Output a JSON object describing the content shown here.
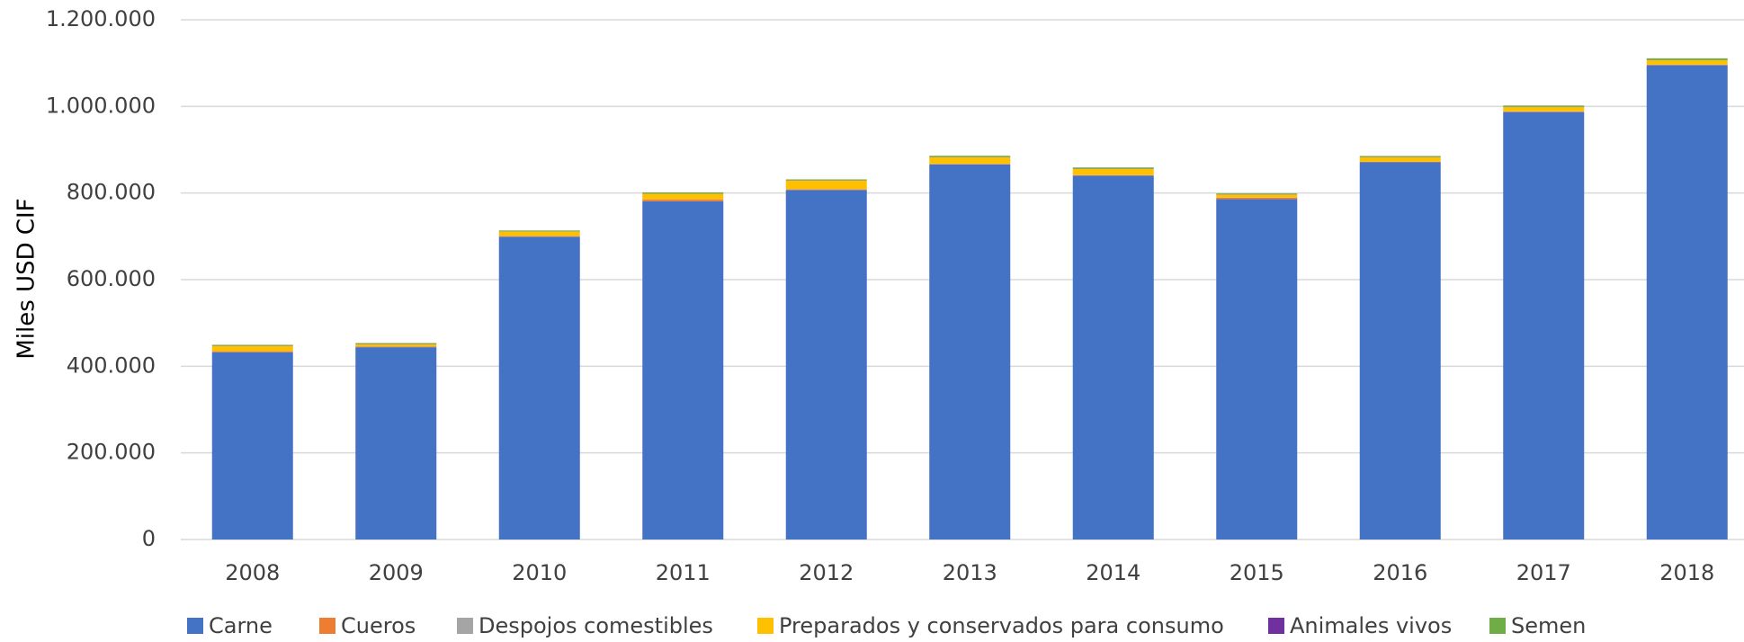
{
  "chart_data": {
    "type": "stacked-bar",
    "y_axis_label": "Miles USD CIF",
    "categories": [
      "2008",
      "2009",
      "2010",
      "2011",
      "2012",
      "2013",
      "2014",
      "2015",
      "2016",
      "2017",
      "2018"
    ],
    "series": [
      {
        "name": "Carne",
        "color": "#4472c4",
        "values": [
          432000,
          444000,
          699000,
          781000,
          807000,
          866000,
          840000,
          786000,
          871000,
          987000,
          1095000
        ]
      },
      {
        "name": "Cueros",
        "color": "#ed7d31",
        "values": [
          2000,
          1500,
          1500,
          4000,
          1500,
          1000,
          1000,
          3000,
          1000,
          1000,
          1000
        ]
      },
      {
        "name": "Despojos comestibles",
        "color": "#a5a5a5",
        "values": [
          1000,
          500,
          500,
          500,
          500,
          500,
          500,
          500,
          500,
          500,
          500
        ]
      },
      {
        "name": "Preparados y conservados para consumo",
        "color": "#ffc000",
        "values": [
          12000,
          5000,
          10000,
          13000,
          20000,
          15000,
          14000,
          7000,
          10000,
          10000,
          10000
        ]
      },
      {
        "name": "Animales vivos",
        "color": "#7030a0",
        "values": [
          500,
          500,
          500,
          500,
          500,
          500,
          500,
          500,
          500,
          500,
          500
        ]
      },
      {
        "name": "Semen",
        "color": "#70ad47",
        "values": [
          2000,
          2000,
          2000,
          2500,
          2000,
          3000,
          3000,
          2000,
          2500,
          3000,
          4000
        ]
      }
    ],
    "ylim": [
      0,
      1200000
    ],
    "yticks": [
      0,
      {
        "value": 200000,
        "label": "200.000"
      },
      {
        "value": 400000,
        "label": "400.000"
      },
      {
        "value": 600000,
        "label": "600.000"
      },
      {
        "value": 800000,
        "label": "800.000"
      },
      {
        "value": 1000000,
        "label": "1.000.000"
      },
      {
        "value": 1200000,
        "label": "1.200.000"
      }
    ],
    "grid": true,
    "legend": "bottom"
  }
}
